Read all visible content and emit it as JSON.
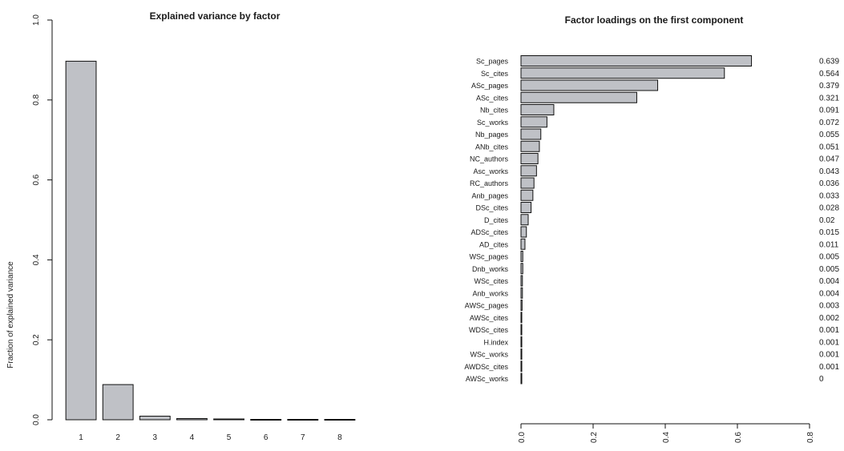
{
  "colors": {
    "bar_fill": "#bfc1c6",
    "bar_stroke": "#111111"
  },
  "chart_data": [
    {
      "type": "bar",
      "title": "Explained variance by factor",
      "xlabel": "",
      "ylabel": "Fraction of explained variance",
      "categories": [
        "1",
        "2",
        "3",
        "4",
        "5",
        "6",
        "7",
        "8"
      ],
      "values": [
        0.897,
        0.088,
        0.009,
        0.003,
        0.002,
        0.001,
        0.001,
        0.001
      ],
      "ylim": [
        0,
        1
      ],
      "yticks": [
        "0.0",
        "0.2",
        "0.4",
        "0.6",
        "0.8",
        "1.0"
      ],
      "grid": false,
      "legend": "none"
    },
    {
      "type": "bar",
      "orientation": "horizontal",
      "title": "Factor loadings on the first component",
      "xlabel": "",
      "ylabel": "",
      "categories": [
        "Sc_pages",
        "Sc_cites",
        "ASc_pages",
        "ASc_cites",
        "Nb_cites",
        "Sc_works",
        "Nb_pages",
        "ANb_cites",
        "NC_authors",
        "Asc_works",
        "RC_authors",
        "Anb_pages",
        "DSc_cites",
        "D_cites",
        "ADSc_cites",
        "AD_cites",
        "WSc_pages",
        "Dnb_works",
        "WSc_cites",
        "Anb_works",
        "AWSc_pages",
        "AWSc_cites",
        "WDSc_cites",
        "H.index",
        "WSc_works",
        "AWDSc_cites",
        "AWSc_works"
      ],
      "values": [
        0.639,
        0.564,
        0.379,
        0.321,
        0.091,
        0.072,
        0.055,
        0.051,
        0.047,
        0.043,
        0.036,
        0.033,
        0.028,
        0.02,
        0.015,
        0.011,
        0.005,
        0.005,
        0.004,
        0.004,
        0.003,
        0.002,
        0.001,
        0.001,
        0.001,
        0.001,
        0
      ],
      "value_labels": [
        "0.639",
        "0.564",
        "0.379",
        "0.321",
        "0.091",
        "0.072",
        "0.055",
        "0.051",
        "0.047",
        "0.043",
        "0.036",
        "0.033",
        "0.028",
        "0.02",
        "0.015",
        "0.011",
        "0.005",
        "0.005",
        "0.004",
        "0.004",
        "0.003",
        "0.002",
        "0.001",
        "0.001",
        "0.001",
        "0.001",
        "0"
      ],
      "xlim": [
        0,
        0.8
      ],
      "xticks": [
        "0.0",
        "0.2",
        "0.4",
        "0.6",
        "0.8"
      ],
      "grid": false,
      "legend": "none"
    }
  ]
}
